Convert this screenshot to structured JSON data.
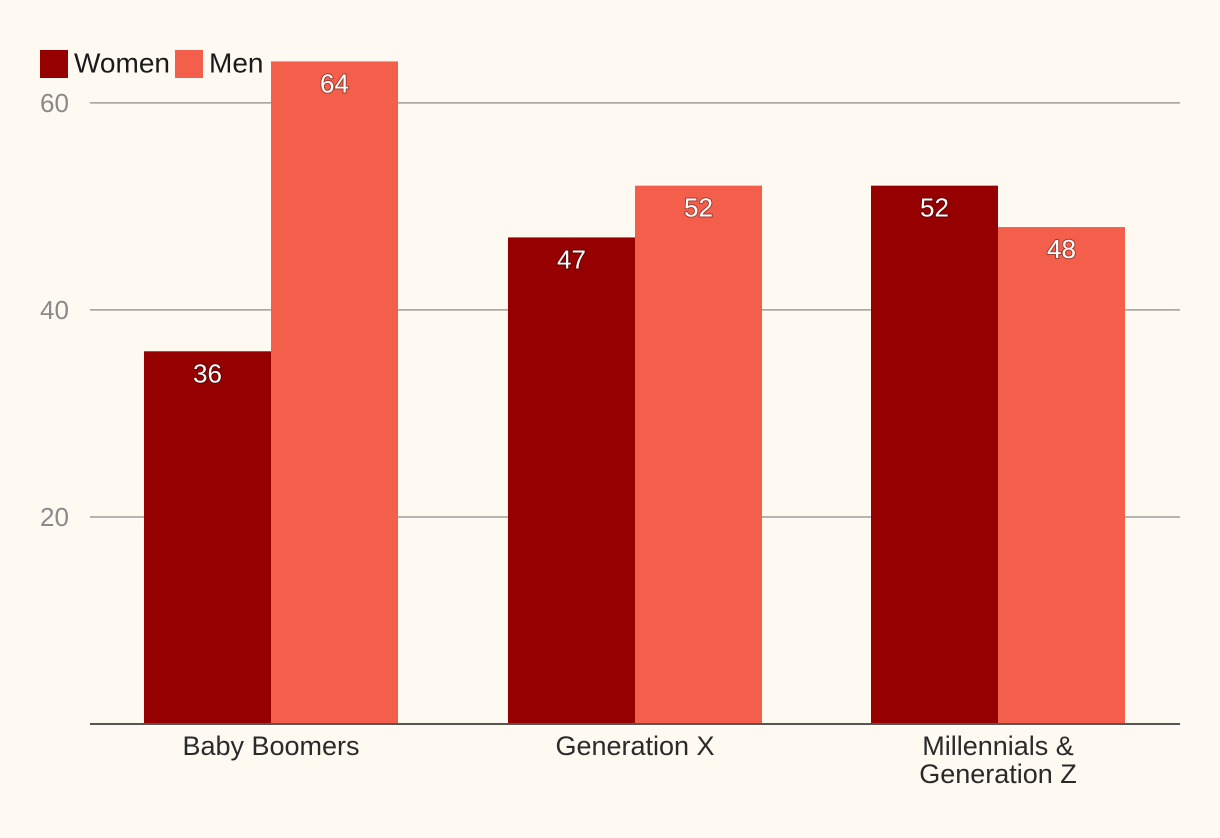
{
  "chart_data": {
    "type": "bar",
    "title": "",
    "xlabel": "",
    "ylabel": "",
    "categories": [
      [
        "Baby Boomers"
      ],
      [
        "Generation X"
      ],
      [
        "Millennials &",
        "Generation Z"
      ]
    ],
    "series": [
      {
        "name": "Women",
        "color": "#960000",
        "values": [
          36,
          47,
          52
        ]
      },
      {
        "name": "Men",
        "color": "#F45F4B",
        "values": [
          64,
          52,
          48
        ]
      }
    ],
    "ylim": [
      0,
      68
    ],
    "yticks": [
      20,
      40,
      60
    ],
    "ytick_labels": [
      "20",
      "40",
      "60"
    ],
    "grid": true,
    "legend_position": "top-left",
    "colors": {
      "background": "#FEF9F1",
      "gridline": "#9e9e9e",
      "axis": "#555555"
    }
  }
}
